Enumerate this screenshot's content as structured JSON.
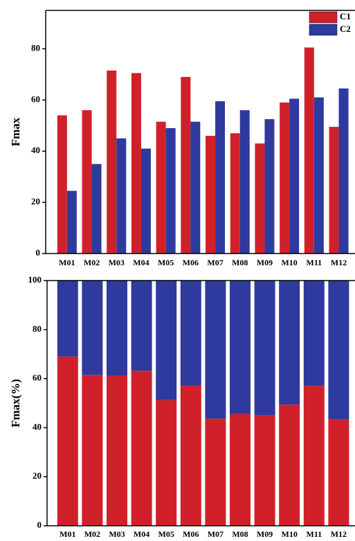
{
  "chart_data": [
    {
      "type": "bar",
      "y_label": "Fmax",
      "categories": [
        "M01",
        "M02",
        "M03",
        "M04",
        "M05",
        "M06",
        "M07",
        "M08",
        "M09",
        "M10",
        "M11",
        "M12"
      ],
      "series": [
        {
          "name": "C1",
          "color": "#d0212a",
          "values": [
            54,
            56,
            71.5,
            70.5,
            51.5,
            69,
            46,
            47,
            43,
            59,
            80.5,
            49.5
          ]
        },
        {
          "name": "C2",
          "color": "#2e3a9e",
          "values": [
            24.5,
            35,
            45,
            41,
            49,
            51.5,
            59.5,
            56,
            52.5,
            60.5,
            61,
            64.5
          ]
        }
      ],
      "ylim": [
        0,
        95
      ],
      "yticks": [
        0,
        20,
        40,
        60,
        80
      ],
      "legend": "upper right"
    },
    {
      "type": "stacked_bar",
      "y_label": "Fmax(%)",
      "categories": [
        "M01",
        "M02",
        "M03",
        "M04",
        "M05",
        "M06",
        "M07",
        "M08",
        "M09",
        "M10",
        "M11",
        "M12"
      ],
      "series": [
        {
          "color": "#d0212a",
          "values": [
            69,
            61.5,
            61.3,
            63.2,
            51.3,
            57.2,
            43.7,
            45.6,
            45,
            49.4,
            57,
            43.4
          ]
        },
        {
          "color": "#2e3a9e",
          "values": [
            31,
            38.5,
            38.7,
            36.8,
            48.7,
            42.8,
            56.3,
            54.4,
            55,
            50.6,
            43,
            56.6
          ]
        }
      ],
      "ylim": [
        0,
        100
      ],
      "yticks": [
        0,
        20,
        40,
        60,
        80,
        100
      ]
    }
  ]
}
